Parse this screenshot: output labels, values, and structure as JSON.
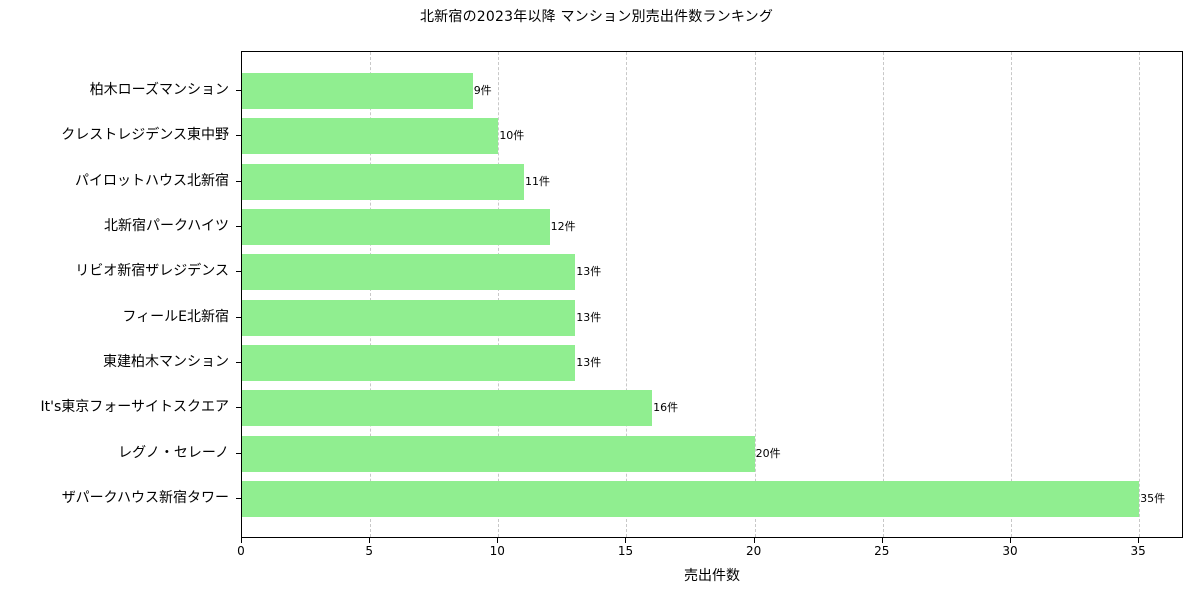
{
  "chart_data": {
    "type": "bar",
    "orientation": "horizontal",
    "title": "北新宿の2023年以降 マンション別売出件数ランキング",
    "xlabel": "売出件数",
    "ylabel": "",
    "xlim": [
      0,
      36.75
    ],
    "xticks": [
      0,
      5,
      10,
      15,
      20,
      25,
      30,
      35
    ],
    "grid": {
      "x": true,
      "y": false,
      "style": "dashed"
    },
    "bar_color": "#90ee90",
    "value_suffix": "件",
    "categories": [
      "柏木ローズマンション",
      "クレストレジデンス東中野",
      "パイロットハウス北新宿",
      "北新宿パークハイツ",
      "リビオ新宿ザレジデンス",
      "フィールE北新宿",
      "東建柏木マンション",
      "It's東京フォーサイトスクエア",
      "レグノ・セレーノ",
      "ザパークハウス新宿タワー"
    ],
    "values": [
      9,
      10,
      11,
      12,
      13,
      13,
      13,
      16,
      20,
      35
    ],
    "bar_labels": [
      "9件",
      "10件",
      "11件",
      "12件",
      "13件",
      "13件",
      "13件",
      "16件",
      "20件",
      "35件"
    ],
    "legend": null
  }
}
